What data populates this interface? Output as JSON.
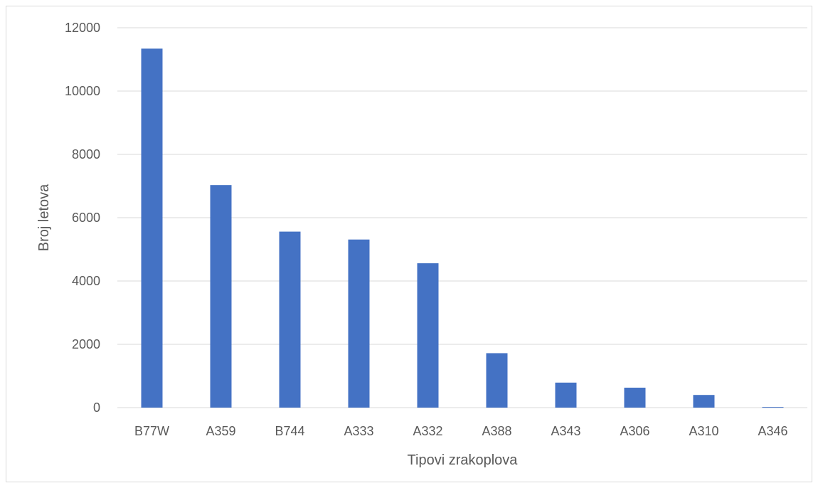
{
  "chart_data": {
    "type": "bar",
    "title": "",
    "xlabel": "Tipovi zrakoplova",
    "ylabel": "Broj letova",
    "categories": [
      "B77W",
      "A359",
      "B744",
      "A333",
      "A332",
      "A388",
      "A343",
      "A306",
      "A310",
      "A346"
    ],
    "series": [
      {
        "values": [
          11340,
          7030,
          5560,
          5310,
          4560,
          1720,
          790,
          630,
          400,
          20
        ],
        "color": "#4472c4"
      }
    ],
    "ylim": [
      0,
      12000
    ],
    "yticks": [
      0,
      2000,
      4000,
      6000,
      8000,
      10000,
      12000
    ],
    "grid": true,
    "legend": "none"
  }
}
